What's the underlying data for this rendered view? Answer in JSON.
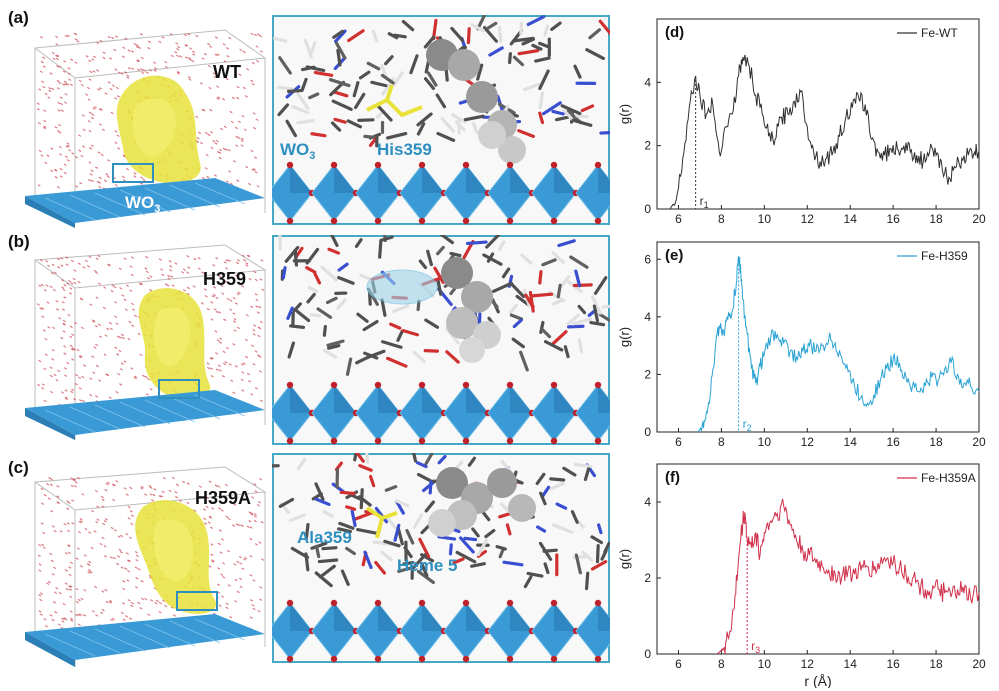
{
  "panel_letters": {
    "a": "(a)",
    "b": "(b)",
    "c": "(c)",
    "d": "(d)",
    "e": "(e)",
    "f": "(f)"
  },
  "md_boxes": [
    {
      "label": "WT",
      "substrate": "WO",
      "substrate_sub": "3"
    },
    {
      "label": "H359"
    },
    {
      "label": "H359A"
    }
  ],
  "zoom_panels": [
    {
      "labels": [
        {
          "text": "WO",
          "sub": "3"
        },
        {
          "text": "His359"
        }
      ]
    },
    {
      "labels": []
    },
    {
      "labels": [
        {
          "text": "Ala359"
        },
        {
          "text": "Heme 5"
        }
      ]
    }
  ],
  "colors": {
    "water": "#d0505a",
    "protein": "#e8e23a",
    "crystal": "#3a9ad6",
    "frame": "#45a9c6",
    "series_wt": "#303030",
    "series_h359": "#2aa3d4",
    "series_h359a": "#d0304a"
  },
  "chart_data": [
    {
      "type": "line",
      "panel": "(d)",
      "series": [
        {
          "name": "Fe-WT",
          "color": "#303030"
        }
      ],
      "x": [
        5.6,
        5.9,
        6.2,
        6.5,
        6.8,
        7.0,
        7.3,
        7.6,
        7.9,
        8.2,
        8.5,
        8.8,
        9.0,
        9.3,
        9.6,
        9.9,
        10.2,
        10.5,
        10.8,
        11.1,
        11.4,
        11.7,
        12.0,
        12.3,
        12.6,
        12.9,
        13.2,
        13.5,
        13.8,
        14.1,
        14.4,
        14.7,
        15.0,
        15.3,
        15.6,
        15.9,
        16.2,
        16.5,
        16.8,
        17.1,
        17.4,
        17.7,
        18.0,
        18.3,
        18.6,
        18.9,
        19.2,
        19.5,
        19.8,
        20.0
      ],
      "y": [
        0.0,
        0.3,
        1.6,
        3.2,
        4.2,
        3.6,
        3.0,
        3.3,
        1.8,
        2.6,
        3.0,
        4.2,
        4.8,
        4.5,
        3.6,
        3.0,
        2.3,
        2.2,
        2.9,
        3.0,
        3.4,
        3.7,
        2.6,
        1.8,
        1.5,
        1.6,
        1.8,
        2.3,
        2.9,
        3.2,
        3.5,
        3.3,
        2.2,
        1.8,
        1.7,
        1.9,
        1.9,
        2.0,
        1.8,
        1.7,
        1.5,
        1.8,
        1.7,
        1.2,
        1.0,
        1.3,
        1.6,
        1.7,
        1.8,
        1.8
      ],
      "xlim": [
        5,
        20
      ],
      "ylim": [
        0,
        6
      ],
      "xticks": [
        "6",
        "8",
        "10",
        "12",
        "14",
        "16",
        "18",
        "20"
      ],
      "yticks": [
        "0",
        "2",
        "4"
      ],
      "ylabel": "g(r)",
      "marker": {
        "x": 6.8,
        "label": "r",
        "sub": "1"
      }
    },
    {
      "type": "line",
      "panel": "(e)",
      "series": [
        {
          "name": "Fe-H359",
          "color": "#2aa3d4"
        }
      ],
      "x": [
        6.9,
        7.1,
        7.3,
        7.5,
        7.7,
        7.9,
        8.1,
        8.3,
        8.5,
        8.7,
        8.8,
        8.9,
        9.0,
        9.2,
        9.4,
        9.6,
        9.8,
        10.0,
        10.3,
        10.6,
        10.9,
        11.2,
        11.5,
        11.8,
        12.1,
        12.4,
        12.7,
        13.0,
        13.3,
        13.6,
        13.9,
        14.2,
        14.5,
        14.8,
        15.1,
        15.4,
        15.7,
        16.0,
        16.3,
        16.6,
        16.9,
        17.2,
        17.5,
        17.8,
        18.1,
        18.4,
        18.7,
        19.0,
        19.3,
        19.6,
        20.0
      ],
      "y": [
        0.0,
        0.2,
        0.7,
        1.4,
        2.8,
        3.7,
        3.5,
        3.9,
        4.2,
        5.2,
        6.1,
        5.6,
        4.6,
        3.4,
        2.2,
        1.7,
        2.3,
        2.7,
        3.3,
        3.4,
        3.1,
        2.8,
        2.6,
        2.8,
        3.0,
        2.8,
        3.0,
        3.2,
        3.1,
        2.6,
        2.1,
        1.6,
        1.2,
        1.0,
        1.3,
        1.8,
        2.2,
        2.5,
        2.4,
        1.9,
        1.6,
        1.4,
        1.6,
        1.9,
        1.8,
        2.2,
        2.4,
        2.0,
        1.7,
        1.6,
        1.4
      ],
      "xlim": [
        5,
        20
      ],
      "ylim": [
        0,
        6.6
      ],
      "xticks": [
        "6",
        "8",
        "10",
        "12",
        "14",
        "16",
        "18",
        "20"
      ],
      "yticks": [
        "0",
        "2",
        "4",
        "6"
      ],
      "ylabel": "g(r)",
      "marker": {
        "x": 8.8,
        "label": "r",
        "sub": "2"
      }
    },
    {
      "type": "line",
      "panel": "(f)",
      "series": [
        {
          "name": "Fe-H359A",
          "color": "#d0304a"
        }
      ],
      "x": [
        7.8,
        8.0,
        8.2,
        8.4,
        8.6,
        8.8,
        9.0,
        9.1,
        9.2,
        9.4,
        9.6,
        9.8,
        10.0,
        10.3,
        10.6,
        10.9,
        11.2,
        11.5,
        11.8,
        12.1,
        12.4,
        12.7,
        13.0,
        13.3,
        13.6,
        13.9,
        14.2,
        14.5,
        14.8,
        15.1,
        15.4,
        15.7,
        16.0,
        16.3,
        16.6,
        16.9,
        17.2,
        17.5,
        17.8,
        18.1,
        18.4,
        18.7,
        19.0,
        19.3,
        19.6,
        20.0
      ],
      "y": [
        0.0,
        0.1,
        0.3,
        0.6,
        1.2,
        2.5,
        3.5,
        3.7,
        3.0,
        2.8,
        3.2,
        2.6,
        3.2,
        3.5,
        3.7,
        3.9,
        3.4,
        3.0,
        2.7,
        2.6,
        2.4,
        2.3,
        2.2,
        2.1,
        2.0,
        2.2,
        2.1,
        2.2,
        2.3,
        2.2,
        2.4,
        2.5,
        2.4,
        2.3,
        2.1,
        2.0,
        1.8,
        1.7,
        1.6,
        1.7,
        1.6,
        1.5,
        1.7,
        1.6,
        1.5,
        1.6
      ],
      "xlim": [
        5,
        20
      ],
      "ylim": [
        0,
        5
      ],
      "xticks": [
        "6",
        "8",
        "10",
        "12",
        "14",
        "16",
        "18",
        "20"
      ],
      "yticks": [
        "0",
        "2",
        "4"
      ],
      "ylabel": "g(r)",
      "xlabel": "r (Å)",
      "marker": {
        "x": 9.2,
        "label": "r",
        "sub": "3"
      }
    }
  ]
}
